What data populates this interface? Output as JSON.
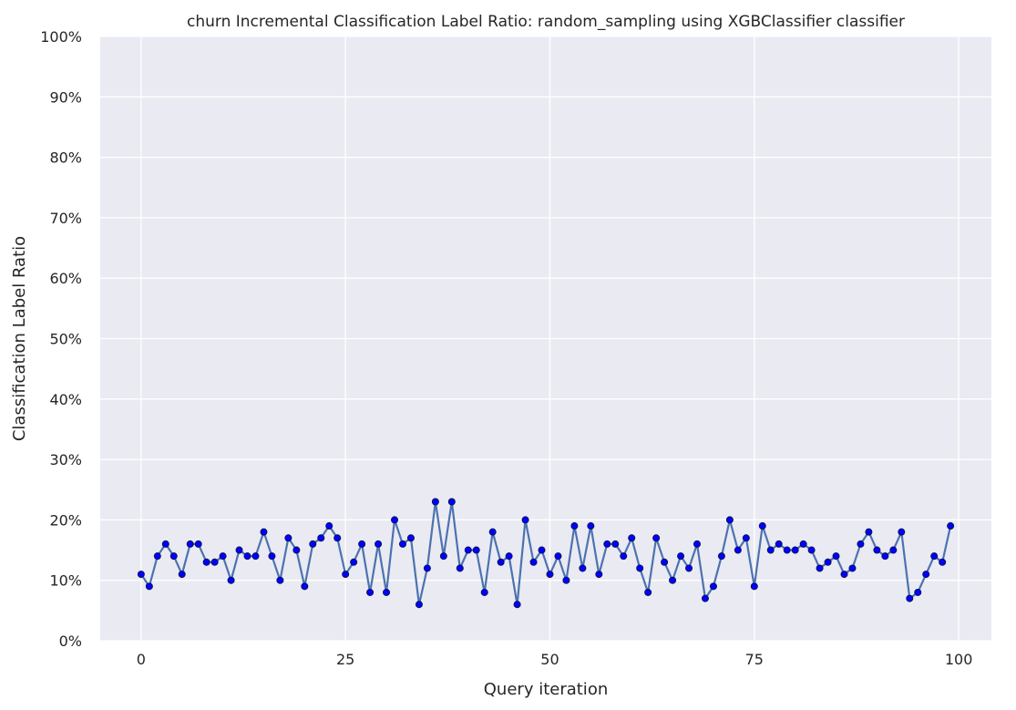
{
  "chart_data": {
    "type": "line",
    "title": "churn Incremental Classification Label Ratio: random_sampling using XGBClassifier classifier",
    "xlabel": "Query iteration",
    "ylabel": "Classification Label Ratio",
    "xlim": [
      -5,
      104
    ],
    "ylim": [
      0,
      100
    ],
    "x_ticks": [
      0,
      25,
      50,
      75,
      100
    ],
    "y_ticks": [
      0,
      10,
      20,
      30,
      40,
      50,
      60,
      70,
      80,
      90,
      100
    ],
    "y_tick_labels": [
      "0%",
      "10%",
      "20%",
      "30%",
      "40%",
      "50%",
      "60%",
      "70%",
      "80%",
      "90%",
      "100%"
    ],
    "grid": true,
    "colors": {
      "line": "#4c72b0",
      "marker": "#0000ff",
      "background": "#eaeaf2"
    },
    "series": [
      {
        "x": [
          0,
          1,
          2,
          3,
          4,
          5,
          6,
          7,
          8,
          9,
          10,
          11,
          12,
          13,
          14,
          15,
          16,
          17,
          18,
          19,
          20,
          21,
          22,
          23,
          24,
          25,
          26,
          27,
          28,
          29,
          30,
          31,
          32,
          33,
          34,
          35,
          36,
          37,
          38,
          39,
          40,
          41,
          42,
          43,
          44,
          45,
          46,
          47,
          48,
          49,
          50,
          51,
          52,
          53,
          54,
          55,
          56,
          57,
          58,
          59,
          60,
          61,
          62,
          63,
          64,
          65,
          66,
          67,
          68,
          69,
          70,
          71,
          72,
          73,
          74,
          75,
          76,
          77,
          78,
          79,
          80,
          81,
          82,
          83,
          84,
          85,
          86,
          87,
          88,
          89,
          90,
          91,
          92,
          93,
          94,
          95,
          96,
          97,
          98,
          99
        ],
        "values": [
          11,
          9,
          14,
          16,
          14,
          11,
          16,
          16,
          13,
          13,
          14,
          10,
          15,
          14,
          14,
          18,
          14,
          10,
          17,
          15,
          9,
          16,
          17,
          19,
          17,
          11,
          13,
          16,
          8,
          16,
          8,
          20,
          16,
          17,
          6,
          12,
          23,
          14,
          23,
          12,
          15,
          15,
          8,
          18,
          13,
          14,
          6,
          20,
          13,
          15,
          11,
          14,
          10,
          19,
          12,
          19,
          11,
          16,
          16,
          14,
          17,
          12,
          8,
          17,
          13,
          10,
          14,
          12,
          16,
          7,
          9,
          14,
          20,
          15,
          17,
          9,
          19,
          15,
          16,
          15,
          15,
          16,
          15,
          12,
          13,
          14,
          11,
          12,
          16,
          18,
          15,
          14,
          15,
          18,
          7,
          8,
          11,
          14,
          13,
          19
        ]
      }
    ]
  }
}
